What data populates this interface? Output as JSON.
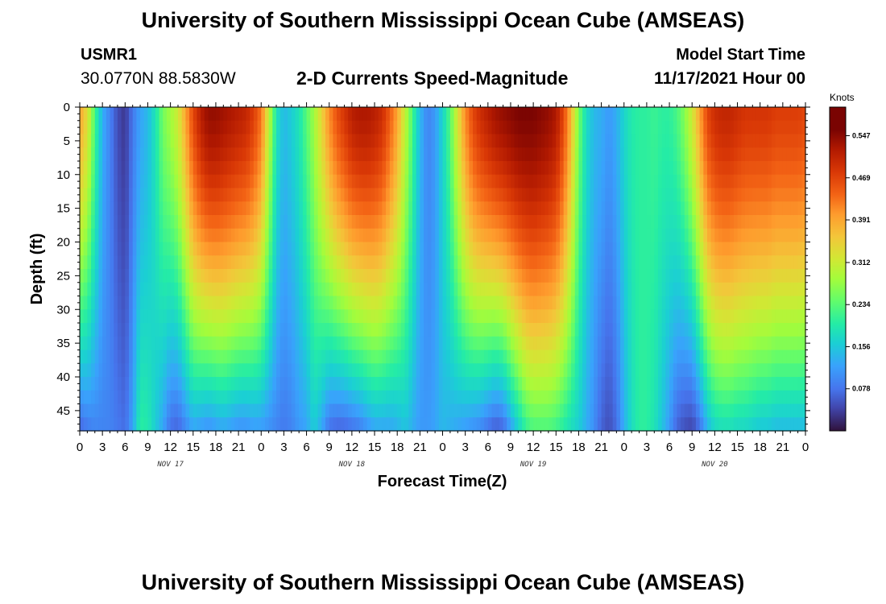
{
  "header": {
    "title": "University of Southern Mississippi Ocean Cube (AMSEAS)",
    "station_id": "USMR1",
    "coords": "30.0770N  88.5830W",
    "subtitle": "2-D Currents Speed-Magnitude",
    "model_start_label": "Model Start Time",
    "model_start_value": "11/17/2021 Hour 00"
  },
  "footer": {
    "title": "University of Southern Mississippi Ocean Cube (AMSEAS)"
  },
  "chart_data": {
    "type": "heatmap",
    "title": "2-D Currents Speed-Magnitude",
    "xlabel": "Forecast Time(Z)",
    "ylabel": "Depth (ft)",
    "x_tick_labels": [
      "0",
      "3",
      "6",
      "9",
      "12",
      "15",
      "18",
      "21",
      "0",
      "3",
      "6",
      "9",
      "12",
      "15",
      "18",
      "21",
      "0",
      "3",
      "6",
      "9",
      "12",
      "15",
      "18",
      "21",
      "0",
      "3",
      "6",
      "9",
      "12",
      "15",
      "18",
      "21",
      "0"
    ],
    "x_range_hours": [
      0,
      96
    ],
    "day_labels": [
      {
        "label": "NOV 17",
        "hour": 12
      },
      {
        "label": "NOV 18",
        "hour": 36
      },
      {
        "label": "NOV 19",
        "hour": 60
      },
      {
        "label": "NOV 20",
        "hour": 84
      }
    ],
    "y_tick_labels": [
      "0",
      "5",
      "10",
      "15",
      "20",
      "25",
      "30",
      "35",
      "40",
      "45"
    ],
    "y_range_ft": [
      0,
      48
    ],
    "colorbar": {
      "title": "Knots",
      "tick_labels": [
        "0.547",
        "0.469",
        "0.391",
        "0.312",
        "0.234",
        "0.156",
        "0.078"
      ],
      "range": [
        0,
        0.6
      ]
    },
    "columns": [
      {
        "hour": 0,
        "top": 0.42,
        "bottom": 0.07
      },
      {
        "hour": 1,
        "top": 0.36,
        "bottom": 0.09
      },
      {
        "hour": 2,
        "top": 0.24,
        "bottom": 0.1
      },
      {
        "hour": 3,
        "top": 0.14,
        "bottom": 0.1
      },
      {
        "hour": 4,
        "top": 0.1,
        "bottom": 0.1
      },
      {
        "hour": 5,
        "top": 0.05,
        "bottom": 0.09
      },
      {
        "hour": 6,
        "top": 0.03,
        "bottom": 0.08
      },
      {
        "hour": 7,
        "top": 0.09,
        "bottom": 0.13
      },
      {
        "hour": 8,
        "top": 0.13,
        "bottom": 0.22
      },
      {
        "hour": 9,
        "top": 0.15,
        "bottom": 0.21
      },
      {
        "hour": 10,
        "top": 0.2,
        "bottom": 0.17
      },
      {
        "hour": 11,
        "top": 0.27,
        "bottom": 0.13
      },
      {
        "hour": 12,
        "top": 0.3,
        "bottom": 0.08
      },
      {
        "hour": 13,
        "top": 0.34,
        "bottom": 0.07
      },
      {
        "hour": 14,
        "top": 0.42,
        "bottom": 0.1
      },
      {
        "hour": 15,
        "top": 0.5,
        "bottom": 0.13
      },
      {
        "hour": 16,
        "top": 0.55,
        "bottom": 0.12
      },
      {
        "hour": 17,
        "top": 0.58,
        "bottom": 0.11
      },
      {
        "hour": 18,
        "top": 0.58,
        "bottom": 0.12
      },
      {
        "hour": 19,
        "top": 0.57,
        "bottom": 0.13
      },
      {
        "hour": 20,
        "top": 0.56,
        "bottom": 0.12
      },
      {
        "hour": 21,
        "top": 0.55,
        "bottom": 0.11
      },
      {
        "hour": 22,
        "top": 0.54,
        "bottom": 0.11
      },
      {
        "hour": 23,
        "top": 0.51,
        "bottom": 0.12
      },
      {
        "hour": 24,
        "top": 0.46,
        "bottom": 0.12
      },
      {
        "hour": 25,
        "top": 0.33,
        "bottom": 0.11
      },
      {
        "hour": 26,
        "top": 0.2,
        "bottom": 0.1
      },
      {
        "hour": 27,
        "top": 0.15,
        "bottom": 0.09
      },
      {
        "hour": 28,
        "top": 0.17,
        "bottom": 0.1
      },
      {
        "hour": 29,
        "top": 0.2,
        "bottom": 0.12
      },
      {
        "hour": 30,
        "top": 0.25,
        "bottom": 0.13
      },
      {
        "hour": 31,
        "top": 0.3,
        "bottom": 0.17
      },
      {
        "hour": 32,
        "top": 0.37,
        "bottom": 0.13
      },
      {
        "hour": 33,
        "top": 0.44,
        "bottom": 0.08
      },
      {
        "hour": 34,
        "top": 0.49,
        "bottom": 0.07
      },
      {
        "hour": 35,
        "top": 0.52,
        "bottom": 0.07
      },
      {
        "hour": 36,
        "top": 0.55,
        "bottom": 0.08
      },
      {
        "hour": 37,
        "top": 0.56,
        "bottom": 0.09
      },
      {
        "hour": 38,
        "top": 0.56,
        "bottom": 0.11
      },
      {
        "hour": 39,
        "top": 0.55,
        "bottom": 0.13
      },
      {
        "hour": 40,
        "top": 0.53,
        "bottom": 0.13
      },
      {
        "hour": 41,
        "top": 0.48,
        "bottom": 0.13
      },
      {
        "hour": 42,
        "top": 0.42,
        "bottom": 0.14
      },
      {
        "hour": 43,
        "top": 0.33,
        "bottom": 0.16
      },
      {
        "hour": 44,
        "top": 0.24,
        "bottom": 0.14
      },
      {
        "hour": 45,
        "top": 0.15,
        "bottom": 0.12
      },
      {
        "hour": 46,
        "top": 0.1,
        "bottom": 0.12
      },
      {
        "hour": 47,
        "top": 0.12,
        "bottom": 0.13
      },
      {
        "hour": 48,
        "top": 0.18,
        "bottom": 0.15
      },
      {
        "hour": 49,
        "top": 0.25,
        "bottom": 0.14
      },
      {
        "hour": 50,
        "top": 0.35,
        "bottom": 0.13
      },
      {
        "hour": 51,
        "top": 0.44,
        "bottom": 0.12
      },
      {
        "hour": 52,
        "top": 0.5,
        "bottom": 0.11
      },
      {
        "hour": 53,
        "top": 0.53,
        "bottom": 0.1
      },
      {
        "hour": 54,
        "top": 0.55,
        "bottom": 0.08
      },
      {
        "hour": 55,
        "top": 0.57,
        "bottom": 0.06
      },
      {
        "hour": 56,
        "top": 0.58,
        "bottom": 0.07
      },
      {
        "hour": 57,
        "top": 0.59,
        "bottom": 0.12
      },
      {
        "hour": 58,
        "top": 0.6,
        "bottom": 0.17
      },
      {
        "hour": 59,
        "top": 0.6,
        "bottom": 0.22
      },
      {
        "hour": 60,
        "top": 0.6,
        "bottom": 0.24
      },
      {
        "hour": 61,
        "top": 0.59,
        "bottom": 0.24
      },
      {
        "hour": 62,
        "top": 0.58,
        "bottom": 0.24
      },
      {
        "hour": 63,
        "top": 0.56,
        "bottom": 0.23
      },
      {
        "hour": 64,
        "top": 0.5,
        "bottom": 0.21
      },
      {
        "hour": 65,
        "top": 0.4,
        "bottom": 0.19
      },
      {
        "hour": 66,
        "top": 0.27,
        "bottom": 0.17
      },
      {
        "hour": 67,
        "top": 0.19,
        "bottom": 0.14
      },
      {
        "hour": 68,
        "top": 0.15,
        "bottom": 0.11
      },
      {
        "hour": 69,
        "top": 0.14,
        "bottom": 0.07
      },
      {
        "hour": 70,
        "top": 0.12,
        "bottom": 0.05
      },
      {
        "hour": 71,
        "top": 0.14,
        "bottom": 0.08
      },
      {
        "hour": 72,
        "top": 0.18,
        "bottom": 0.14
      },
      {
        "hour": 73,
        "top": 0.21,
        "bottom": 0.19
      },
      {
        "hour": 74,
        "top": 0.22,
        "bottom": 0.22
      },
      {
        "hour": 75,
        "top": 0.22,
        "bottom": 0.22
      },
      {
        "hour": 76,
        "top": 0.23,
        "bottom": 0.2
      },
      {
        "hour": 77,
        "top": 0.22,
        "bottom": 0.16
      },
      {
        "hour": 78,
        "top": 0.22,
        "bottom": 0.12
      },
      {
        "hour": 79,
        "top": 0.24,
        "bottom": 0.07
      },
      {
        "hour": 80,
        "top": 0.28,
        "bottom": 0.05
      },
      {
        "hour": 81,
        "top": 0.34,
        "bottom": 0.04
      },
      {
        "hour": 82,
        "top": 0.42,
        "bottom": 0.08
      },
      {
        "hour": 83,
        "top": 0.5,
        "bottom": 0.14
      },
      {
        "hour": 84,
        "top": 0.53,
        "bottom": 0.18
      },
      {
        "hour": 85,
        "top": 0.54,
        "bottom": 0.19
      },
      {
        "hour": 86,
        "top": 0.54,
        "bottom": 0.19
      },
      {
        "hour": 87,
        "top": 0.53,
        "bottom": 0.18
      },
      {
        "hour": 88,
        "top": 0.52,
        "bottom": 0.18
      },
      {
        "hour": 89,
        "top": 0.52,
        "bottom": 0.17
      },
      {
        "hour": 90,
        "top": 0.52,
        "bottom": 0.16
      },
      {
        "hour": 91,
        "top": 0.52,
        "bottom": 0.16
      },
      {
        "hour": 92,
        "top": 0.51,
        "bottom": 0.15
      },
      {
        "hour": 93,
        "top": 0.51,
        "bottom": 0.15
      },
      {
        "hour": 94,
        "top": 0.51,
        "bottom": 0.15
      },
      {
        "hour": 95,
        "top": 0.51,
        "bottom": 0.15
      },
      {
        "hour": 96,
        "top": 0.5,
        "bottom": 0.15
      }
    ]
  }
}
